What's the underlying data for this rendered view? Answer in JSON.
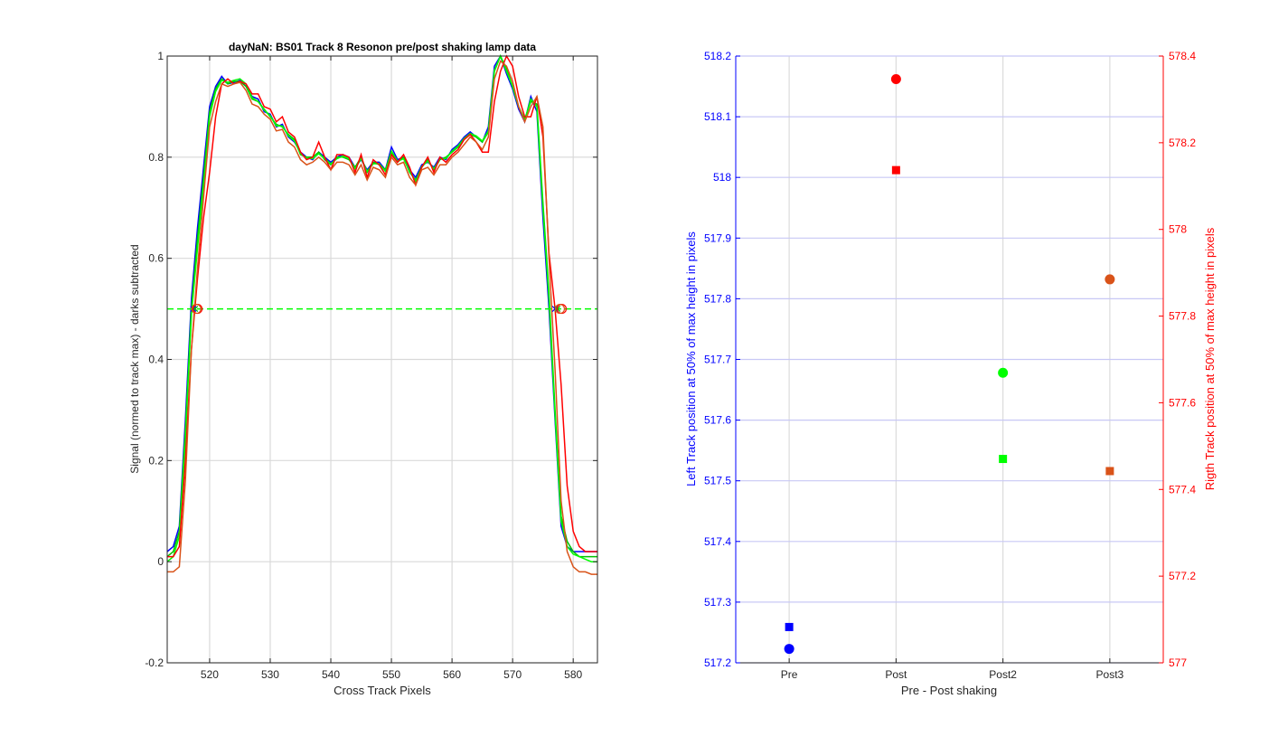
{
  "chart_data": [
    {
      "type": "line",
      "title": "dayNaN: BS01  Track 8 Resonon pre/post shaking lamp data",
      "xlabel": "Cross Track Pixels",
      "ylabel": "Signal (normed to track max) - darks subtracted",
      "xlim": [
        513,
        584
      ],
      "ylim": [
        -0.2,
        1
      ],
      "xticks": [
        520,
        530,
        540,
        550,
        560,
        570,
        580
      ],
      "yticks": [
        -0.2,
        0,
        0.2,
        0.4,
        0.6,
        0.8,
        1
      ],
      "grid": true,
      "x": [
        513,
        514,
        515,
        516,
        517,
        518,
        519,
        520,
        521,
        522,
        523,
        524,
        525,
        526,
        527,
        528,
        529,
        530,
        531,
        532,
        533,
        534,
        535,
        536,
        537,
        538,
        539,
        540,
        541,
        542,
        543,
        544,
        545,
        546,
        547,
        548,
        549,
        550,
        551,
        552,
        553,
        554,
        555,
        556,
        557,
        558,
        559,
        560,
        561,
        562,
        563,
        564,
        565,
        566,
        567,
        568,
        569,
        570,
        571,
        572,
        573,
        574,
        575,
        576,
        577,
        578,
        579,
        580,
        581,
        582,
        583,
        584
      ],
      "series": [
        {
          "color": "#0000ff",
          "values": [
            0.02,
            0.03,
            0.07,
            0.28,
            0.52,
            0.66,
            0.78,
            0.9,
            0.94,
            0.96,
            0.945,
            0.948,
            0.952,
            0.94,
            0.92,
            0.915,
            0.89,
            0.885,
            0.86,
            0.865,
            0.84,
            0.83,
            0.81,
            0.8,
            0.795,
            0.81,
            0.8,
            0.79,
            0.8,
            0.805,
            0.8,
            0.78,
            0.795,
            0.775,
            0.79,
            0.79,
            0.775,
            0.82,
            0.795,
            0.8,
            0.775,
            0.76,
            0.785,
            0.79,
            0.78,
            0.8,
            0.795,
            0.815,
            0.825,
            0.84,
            0.85,
            0.84,
            0.83,
            0.86,
            0.98,
            1.0,
            0.965,
            0.935,
            0.895,
            0.87,
            0.92,
            0.89,
            0.68,
            0.5,
            0.28,
            0.07,
            0.03,
            0.02,
            0.02,
            0.02,
            0.02,
            0.02
          ]
        },
        {
          "color": "#00c000",
          "values": [
            0.01,
            0.02,
            0.06,
            0.26,
            0.5,
            0.64,
            0.76,
            0.89,
            0.935,
            0.955,
            0.945,
            0.95,
            0.95,
            0.94,
            0.915,
            0.91,
            0.895,
            0.88,
            0.865,
            0.86,
            0.845,
            0.835,
            0.805,
            0.8,
            0.8,
            0.81,
            0.795,
            0.785,
            0.8,
            0.8,
            0.795,
            0.78,
            0.8,
            0.77,
            0.79,
            0.785,
            0.775,
            0.81,
            0.79,
            0.8,
            0.77,
            0.755,
            0.78,
            0.795,
            0.775,
            0.795,
            0.8,
            0.81,
            0.82,
            0.835,
            0.845,
            0.84,
            0.83,
            0.85,
            0.97,
            1.0,
            0.975,
            0.94,
            0.9,
            0.875,
            0.91,
            0.905,
            0.71,
            0.53,
            0.3,
            0.09,
            0.04,
            0.02,
            0.01,
            0.01,
            0.01,
            0.01
          ]
        },
        {
          "color": "#00ff00",
          "values": [
            0.0,
            0.01,
            0.05,
            0.24,
            0.49,
            0.62,
            0.74,
            0.88,
            0.93,
            0.952,
            0.948,
            0.952,
            0.955,
            0.945,
            0.918,
            0.91,
            0.893,
            0.882,
            0.862,
            0.862,
            0.842,
            0.832,
            0.807,
            0.798,
            0.797,
            0.807,
            0.797,
            0.787,
            0.797,
            0.802,
            0.797,
            0.777,
            0.797,
            0.772,
            0.787,
            0.787,
            0.772,
            0.812,
            0.792,
            0.797,
            0.772,
            0.752,
            0.782,
            0.792,
            0.777,
            0.797,
            0.797,
            0.812,
            0.822,
            0.837,
            0.847,
            0.842,
            0.832,
            0.852,
            0.972,
            1.0,
            0.97,
            0.94,
            0.9,
            0.872,
            0.915,
            0.9,
            0.7,
            0.52,
            0.29,
            0.08,
            0.03,
            0.015,
            0.01,
            0.005,
            0.0,
            0.0
          ]
        },
        {
          "color": "#ff0000",
          "values": [
            0.01,
            0.01,
            0.03,
            0.2,
            0.42,
            0.56,
            0.68,
            0.77,
            0.88,
            0.945,
            0.955,
            0.945,
            0.95,
            0.945,
            0.925,
            0.925,
            0.9,
            0.895,
            0.87,
            0.88,
            0.85,
            0.84,
            0.81,
            0.795,
            0.8,
            0.83,
            0.8,
            0.775,
            0.805,
            0.805,
            0.8,
            0.77,
            0.805,
            0.76,
            0.795,
            0.785,
            0.765,
            0.805,
            0.79,
            0.805,
            0.78,
            0.745,
            0.78,
            0.8,
            0.77,
            0.8,
            0.79,
            0.805,
            0.815,
            0.835,
            0.845,
            0.83,
            0.81,
            0.81,
            0.91,
            0.97,
            1.0,
            0.98,
            0.92,
            0.88,
            0.88,
            0.92,
            0.84,
            0.61,
            0.5,
            0.35,
            0.15,
            0.06,
            0.03,
            0.02,
            0.02,
            0.02
          ]
        },
        {
          "color": "#d95319",
          "values": [
            -0.02,
            -0.02,
            -0.01,
            0.16,
            0.42,
            0.58,
            0.72,
            0.86,
            0.91,
            0.945,
            0.94,
            0.945,
            0.948,
            0.932,
            0.905,
            0.9,
            0.885,
            0.875,
            0.852,
            0.855,
            0.83,
            0.82,
            0.795,
            0.785,
            0.79,
            0.8,
            0.79,
            0.775,
            0.79,
            0.79,
            0.785,
            0.765,
            0.785,
            0.755,
            0.78,
            0.775,
            0.76,
            0.8,
            0.785,
            0.79,
            0.76,
            0.745,
            0.775,
            0.78,
            0.765,
            0.785,
            0.785,
            0.8,
            0.81,
            0.825,
            0.84,
            0.83,
            0.815,
            0.84,
            0.955,
            0.99,
            0.98,
            0.95,
            0.9,
            0.87,
            0.9,
            0.92,
            0.86,
            0.6,
            0.38,
            0.12,
            0.02,
            -0.01,
            -0.02,
            -0.02,
            -0.025,
            -0.025
          ]
        }
      ],
      "reference_line": {
        "y": 0.5,
        "color": "#00ff00",
        "style": "dashed"
      },
      "crossing_markers": [
        {
          "x": 517.3,
          "y": 0.5,
          "color": "#0000ff",
          "marker": "x"
        },
        {
          "x": 517.6,
          "y": 0.5,
          "color": "#00c000",
          "marker": "x"
        },
        {
          "x": 518.0,
          "y": 0.5,
          "color": "#ff0000",
          "marker": "o"
        },
        {
          "x": 517.8,
          "y": 0.5,
          "color": "#d95319",
          "marker": "o"
        },
        {
          "x": 577.0,
          "y": 0.5,
          "color": "#0000ff",
          "marker": "x"
        },
        {
          "x": 577.4,
          "y": 0.5,
          "color": "#00c000",
          "marker": "x"
        },
        {
          "x": 578.1,
          "y": 0.5,
          "color": "#ff0000",
          "marker": "o"
        },
        {
          "x": 577.8,
          "y": 0.5,
          "color": "#d95319",
          "marker": "o"
        }
      ]
    },
    {
      "type": "scatter",
      "title": "",
      "xlabel": "Pre - Post shaking",
      "ylabel_left": "Left Track position at 50% of max height in pixels",
      "ylabel_right": "Rigth Track position at 50% of max height in pixels",
      "categories": [
        "Pre",
        "Post",
        "Post2",
        "Post3"
      ],
      "ylim_left": [
        517.2,
        518.2
      ],
      "ylim_right": [
        577,
        578.4
      ],
      "yticks_left": [
        517.2,
        517.3,
        517.4,
        517.5,
        517.6,
        517.7,
        517.8,
        517.9,
        518,
        518.1,
        518.2
      ],
      "yticks_left_labels": [
        "517.2",
        "517.3",
        "517.4",
        "517.5",
        "517.6",
        "517.7",
        "517.8",
        "517.9",
        "518",
        "518.1",
        "518.2"
      ],
      "yticks_right": [
        577,
        577.2,
        577.4,
        577.6,
        577.8,
        578,
        578.2,
        578.4
      ],
      "yticks_right_labels": [
        "577",
        "577.2",
        "577.4",
        "577.6",
        "577.8",
        "578",
        "578.2",
        "578.4"
      ],
      "left_axis_color": "#0000ff",
      "right_axis_color": "#ff0000",
      "grid": true,
      "points": [
        {
          "category": "Pre",
          "value": 517.259,
          "marker": "square",
          "color": "#0000ff"
        },
        {
          "category": "Pre",
          "value": 517.223,
          "marker": "circle",
          "color": "#0000ff"
        },
        {
          "category": "Post",
          "value": 518.012,
          "marker": "square",
          "color": "#ff0000"
        },
        {
          "category": "Post",
          "value": 518.162,
          "marker": "circle",
          "color": "#ff0000"
        },
        {
          "category": "Post2",
          "value": 517.536,
          "marker": "square",
          "color": "#00ff00"
        },
        {
          "category": "Post2",
          "value": 517.678,
          "marker": "circle",
          "color": "#00ff00"
        },
        {
          "category": "Post3",
          "value": 517.516,
          "marker": "square",
          "color": "#d95319"
        },
        {
          "category": "Post3",
          "value": 517.832,
          "marker": "circle",
          "color": "#d95319"
        }
      ]
    }
  ]
}
